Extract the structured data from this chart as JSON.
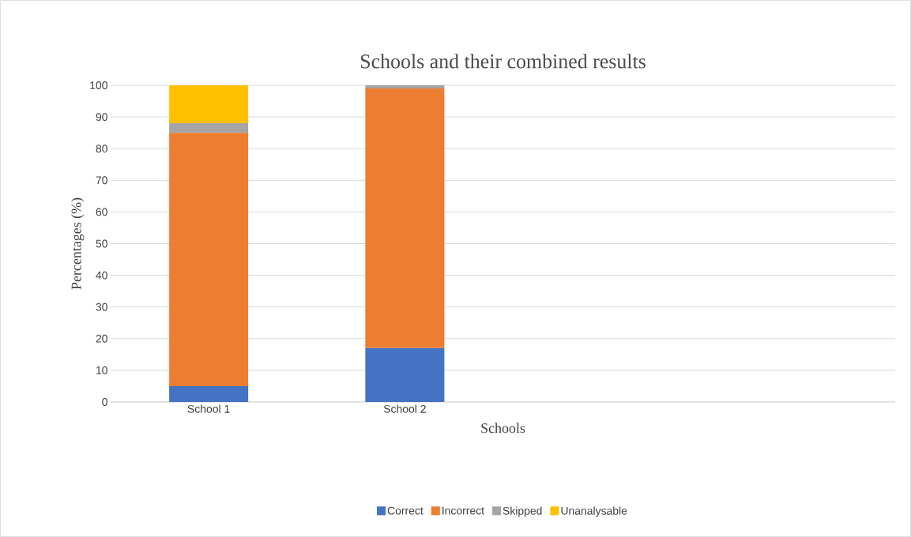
{
  "chart_data": {
    "type": "bar",
    "title": "Schools and their combined results",
    "xlabel": "Schools",
    "ylabel": "Percentages (%)",
    "categories": [
      "School 1",
      "School 2",
      null,
      null
    ],
    "stacked": true,
    "series": [
      {
        "name": "Correct",
        "color": "#4472c4",
        "values": [
          5,
          17,
          null,
          null
        ]
      },
      {
        "name": "Incorrect",
        "color": "#ed7d31",
        "values": [
          80,
          82,
          null,
          null
        ]
      },
      {
        "name": "Skipped",
        "color": "#a5a5a5",
        "values": [
          3,
          1,
          null,
          null
        ]
      },
      {
        "name": "Unanalysable",
        "color": "#ffc000",
        "values": [
          12,
          0,
          null,
          null
        ]
      }
    ],
    "ylim": [
      0,
      100
    ],
    "yticks": [
      0,
      10,
      20,
      30,
      40,
      50,
      60,
      70,
      80,
      90,
      100
    ],
    "grid": "y",
    "legend": "bottom"
  }
}
